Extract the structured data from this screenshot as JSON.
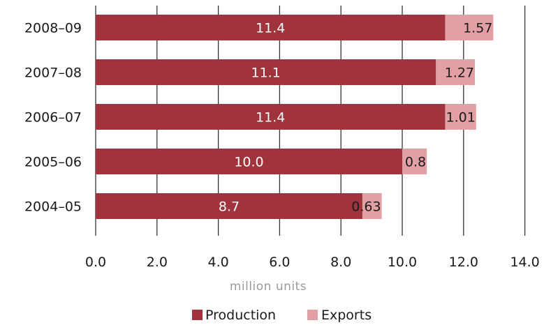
{
  "chart_data": {
    "type": "bar",
    "orientation": "horizontal",
    "stacked": true,
    "categories": [
      "2008–09",
      "2007–08",
      "2006–07",
      "2005–06",
      "2004–05"
    ],
    "series": [
      {
        "name": "Production",
        "values": [
          11.4,
          11.1,
          11.4,
          10.0,
          8.7
        ],
        "color": "#a0333b",
        "label_color": "#ffffff"
      },
      {
        "name": "Exports",
        "values": [
          1.57,
          1.27,
          1.01,
          0.8,
          0.63
        ],
        "color": "#e0a0a4",
        "label_color": "#1a1a1a"
      }
    ],
    "value_labels": [
      [
        "11.4",
        "11.1",
        "11.4",
        "10.0",
        "8.7"
      ],
      [
        "1.57",
        "1.27",
        "1.01",
        "0.8",
        "0.63"
      ]
    ],
    "xlabel": "million  units",
    "xlim": [
      0,
      14
    ],
    "xticks": [
      "0.0",
      "2.0",
      "4.0",
      "6.0",
      "8.0",
      "10.0",
      "12.0",
      "14.0"
    ],
    "grid": true,
    "legend_position": "bottom"
  }
}
